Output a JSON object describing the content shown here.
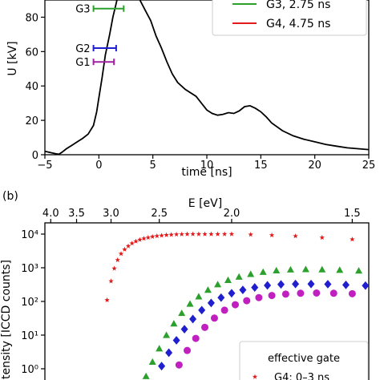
{
  "chart_data": [
    {
      "type": "line",
      "xlabel": "time [ns]",
      "ylabel": "U [kV]",
      "xlim": [
        -5,
        25
      ],
      "ylim": [
        0,
        90
      ],
      "xticks": [
        "−5",
        "0",
        "5",
        "10",
        "15",
        "20",
        "25"
      ],
      "yticks": [
        "0",
        "20",
        "40",
        "60",
        "80"
      ],
      "series": [
        {
          "name": "",
          "points": [
            [
              -5,
              2
            ],
            [
              -4.5,
              1.3
            ],
            [
              -4,
              0.6
            ],
            [
              -3.7,
              0.3
            ],
            [
              -3.4,
              1.5
            ],
            [
              -3,
              3.5
            ],
            [
              -2.5,
              5.5
            ],
            [
              -2,
              7.5
            ],
            [
              -1.5,
              9.5
            ],
            [
              -1,
              12
            ],
            [
              -0.5,
              17
            ],
            [
              -0.2,
              25
            ],
            [
              0,
              33
            ],
            [
              0.3,
              45
            ],
            [
              0.6,
              58
            ],
            [
              1,
              70
            ],
            [
              1.3,
              80
            ],
            [
              1.6,
              88
            ],
            [
              1.9,
              96
            ],
            [
              2.3,
              102
            ],
            [
              2.8,
              99
            ],
            [
              3.3,
              95
            ],
            [
              3.8,
              90
            ],
            [
              4.3,
              84
            ],
            [
              4.8,
              78
            ],
            [
              5.3,
              69
            ],
            [
              5.8,
              62
            ],
            [
              6.3,
              54
            ],
            [
              6.8,
              47
            ],
            [
              7.3,
              42
            ],
            [
              8,
              38
            ],
            [
              9,
              34
            ],
            [
              10,
              26
            ],
            [
              10.5,
              24
            ],
            [
              11,
              23
            ],
            [
              11.5,
              23.5
            ],
            [
              12,
              24.5
            ],
            [
              12.5,
              24
            ],
            [
              13,
              25.5
            ],
            [
              13.5,
              28
            ],
            [
              14,
              28.5
            ],
            [
              14.5,
              27
            ],
            [
              15,
              25
            ],
            [
              15.5,
              22
            ],
            [
              16,
              18.5
            ],
            [
              17,
              14
            ],
            [
              18,
              11
            ],
            [
              19,
              9
            ],
            [
              20,
              7.5
            ],
            [
              21,
              6
            ],
            [
              22,
              5
            ],
            [
              23,
              4
            ],
            [
              24,
              3.5
            ],
            [
              25,
              3
            ]
          ]
        }
      ],
      "gates": [
        {
          "label": "G3",
          "x": [
            -0.5,
            2.3
          ],
          "y": 85,
          "color": "#2ca02c"
        },
        {
          "label": "G2",
          "x": [
            -0.5,
            1.6
          ],
          "y": 62,
          "color": "#1f1fd0"
        },
        {
          "label": "G1",
          "x": [
            -0.5,
            1.4
          ],
          "y": 54,
          "color": "#a020a0"
        }
      ],
      "legend": [
        {
          "label": "G3, 2.75 ns",
          "color": "#2ca02c"
        },
        {
          "label": "G4, 4.75 ns",
          "color": "#e31a1c"
        }
      ]
    },
    {
      "type": "scatter",
      "panel_label": "(b)",
      "top_xlabel": "E [eV]",
      "top_xticks": [
        "4.0",
        "3.5",
        "3.0",
        "2.5",
        "2.0",
        "1.5"
      ],
      "ylabel": "Intensity [ICCD counts]",
      "yscale": "log",
      "yticks": [
        "10⁰",
        "10¹",
        "10²",
        "10³",
        "10⁴"
      ],
      "legend_title": "effective gate",
      "legend_visible_entry": "G4: 0–3 ns",
      "series": [
        {
          "name": "G4: 0–3 ns",
          "marker": "star",
          "color": "#e31a1c",
          "points": [
            [
              3.05,
              110
            ],
            [
              3.0,
              400
            ],
            [
              2.96,
              950
            ],
            [
              2.92,
              1700
            ],
            [
              2.88,
              2600
            ],
            [
              2.84,
              3500
            ],
            [
              2.8,
              4400
            ],
            [
              2.76,
              5300
            ],
            [
              2.72,
              6100
            ],
            [
              2.68,
              6800
            ],
            [
              2.64,
              7400
            ],
            [
              2.6,
              7900
            ],
            [
              2.56,
              8400
            ],
            [
              2.52,
              8800
            ],
            [
              2.48,
              9100
            ],
            [
              2.44,
              9400
            ],
            [
              2.4,
              9600
            ],
            [
              2.36,
              9800
            ],
            [
              2.32,
              9900
            ],
            [
              2.28,
              10000
            ],
            [
              2.24,
              10000
            ],
            [
              2.2,
              10000
            ],
            [
              2.16,
              10000
            ],
            [
              2.12,
              10000
            ],
            [
              2.08,
              10000
            ],
            [
              2.04,
              10000
            ],
            [
              2.0,
              10000
            ],
            [
              1.9,
              9700
            ],
            [
              1.8,
              9300
            ],
            [
              1.7,
              8700
            ],
            [
              1.6,
              7900
            ],
            [
              1.5,
              7000
            ],
            [
              1.42,
              6200
            ],
            [
              1.34,
              5500
            ],
            [
              1.26,
              4800
            ]
          ]
        },
        {
          "name": "",
          "marker": "triangle",
          "color": "#2ca02c",
          "points": [
            [
              2.62,
              0.6
            ],
            [
              2.56,
              1.6
            ],
            [
              2.5,
              4
            ],
            [
              2.44,
              10
            ],
            [
              2.38,
              22
            ],
            [
              2.32,
              45
            ],
            [
              2.26,
              85
            ],
            [
              2.2,
              140
            ],
            [
              2.14,
              220
            ],
            [
              2.08,
              320
            ],
            [
              2.02,
              430
            ],
            [
              1.96,
              540
            ],
            [
              1.9,
              650
            ],
            [
              1.84,
              750
            ],
            [
              1.78,
              830
            ],
            [
              1.72,
              880
            ],
            [
              1.66,
              900
            ],
            [
              1.6,
              890
            ],
            [
              1.54,
              860
            ],
            [
              1.48,
              820
            ],
            [
              1.42,
              780
            ],
            [
              1.36,
              740
            ],
            [
              1.3,
              700
            ]
          ]
        },
        {
          "name": "",
          "marker": "diamond",
          "color": "#1f1fd0",
          "points": [
            [
              2.53,
              0.3
            ],
            [
              2.48,
              1.2
            ],
            [
              2.42,
              3
            ],
            [
              2.36,
              7
            ],
            [
              2.3,
              15
            ],
            [
              2.24,
              30
            ],
            [
              2.18,
              55
            ],
            [
              2.12,
              90
            ],
            [
              2.06,
              130
            ],
            [
              2.0,
              175
            ],
            [
              1.94,
              220
            ],
            [
              1.88,
              260
            ],
            [
              1.82,
              300
            ],
            [
              1.76,
              320
            ],
            [
              1.7,
              330
            ],
            [
              1.64,
              330
            ],
            [
              1.58,
              325
            ],
            [
              1.52,
              310
            ],
            [
              1.46,
              295
            ],
            [
              1.4,
              280
            ],
            [
              1.34,
              265
            ],
            [
              1.28,
              250
            ]
          ]
        },
        {
          "name": "",
          "marker": "circle",
          "color": "#c020c0",
          "points": [
            [
              2.4,
              0.4
            ],
            [
              2.34,
              1.3
            ],
            [
              2.28,
              3.5
            ],
            [
              2.22,
              8
            ],
            [
              2.16,
              17
            ],
            [
              2.1,
              32
            ],
            [
              2.04,
              55
            ],
            [
              1.98,
              80
            ],
            [
              1.92,
              105
            ],
            [
              1.86,
              130
            ],
            [
              1.8,
              150
            ],
            [
              1.74,
              165
            ],
            [
              1.68,
              175
            ],
            [
              1.62,
              178
            ],
            [
              1.56,
              175
            ],
            [
              1.5,
              170
            ],
            [
              1.44,
              162
            ],
            [
              1.38,
              155
            ],
            [
              1.32,
              148
            ],
            [
              1.26,
              140
            ]
          ]
        }
      ]
    }
  ],
  "colors": {
    "axis": "#000000",
    "curve": "#000000"
  }
}
